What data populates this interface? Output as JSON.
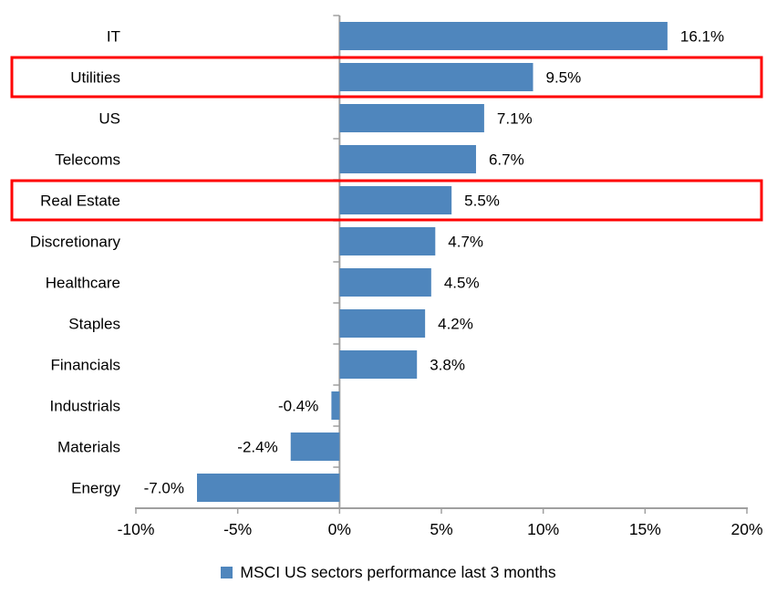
{
  "chart_data": {
    "type": "bar",
    "orientation": "horizontal",
    "categories": [
      "IT",
      "Utilities",
      "US",
      "Telecoms",
      "Real Estate",
      "Discretionary",
      "Healthcare",
      "Staples",
      "Financials",
      "Industrials",
      "Materials",
      "Energy"
    ],
    "values": [
      16.1,
      9.5,
      7.1,
      6.7,
      5.5,
      4.7,
      4.5,
      4.2,
      3.8,
      -0.4,
      -2.4,
      -7.0
    ],
    "value_labels": [
      "16.1%",
      "9.5%",
      "7.1%",
      "6.7%",
      "5.5%",
      "4.7%",
      "4.5%",
      "4.2%",
      "3.8%",
      "-0.4%",
      "-2.4%",
      "-7.0%"
    ],
    "highlighted_categories": [
      "Utilities",
      "Real Estate"
    ],
    "x_axis": {
      "range": [
        -10,
        20
      ],
      "ticks": [
        -10,
        -5,
        0,
        5,
        10,
        15,
        20
      ],
      "tick_labels": [
        "-10%",
        "-5%",
        "0%",
        "5%",
        "10%",
        "15%",
        "20%"
      ]
    },
    "grid": false,
    "legend": {
      "position": "bottom",
      "label": "MSCI US sectors performance last 3 months"
    },
    "colors": {
      "bar": "#4F86BD",
      "highlight_box": "#FF0000",
      "axis": "#A0A0A0",
      "text": "#000000"
    }
  }
}
